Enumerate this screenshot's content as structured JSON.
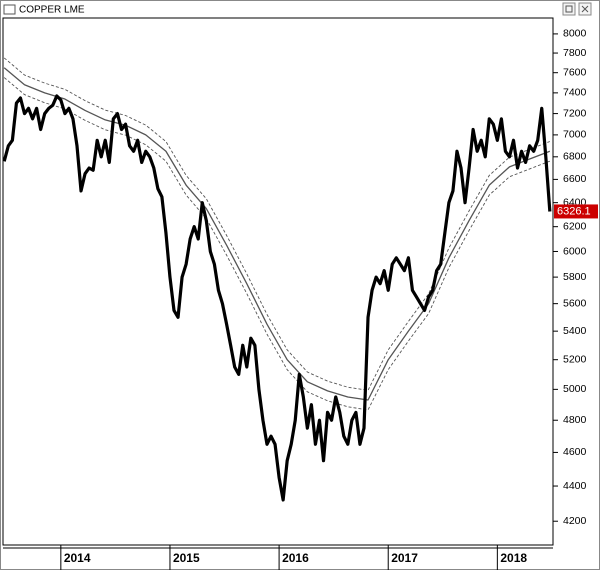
{
  "chart_data": {
    "type": "line",
    "title": "COPPER LME",
    "log_scale": true,
    "xlim": [
      2013.47,
      2018.51
    ],
    "xticks": [
      {
        "value": 2014,
        "label": "2014"
      },
      {
        "value": 2015,
        "label": "2015"
      },
      {
        "value": 2016,
        "label": "2016"
      },
      {
        "value": 2017,
        "label": "2017"
      },
      {
        "value": 2018,
        "label": "2018"
      }
    ],
    "ylim": [
      4070,
      8170
    ],
    "yticks": [
      4200,
      4400,
      4600,
      4800,
      5000,
      5200,
      5400,
      5600,
      5800,
      6000,
      6200,
      6400,
      6600,
      6800,
      7000,
      7200,
      7400,
      7600,
      7800,
      8000
    ],
    "last_value_color": "#cc0000",
    "series": [
      {
        "color": "#000000",
        "style": "bold",
        "x": [
          2013.481,
          2013.519,
          2013.556,
          2013.593,
          2013.63,
          2013.667,
          2013.704,
          2013.741,
          2013.778,
          2013.815,
          2013.852,
          2013.889,
          2013.926,
          2013.963,
          2014.0,
          2014.037,
          2014.074,
          2014.111,
          2014.148,
          2014.185,
          2014.222,
          2014.259,
          2014.296,
          2014.333,
          2014.37,
          2014.407,
          2014.444,
          2014.481,
          2014.519,
          2014.556,
          2014.593,
          2014.63,
          2014.667,
          2014.704,
          2014.741,
          2014.778,
          2014.815,
          2014.852,
          2014.889,
          2014.926,
          2014.963,
          2015.0,
          2015.037,
          2015.074,
          2015.111,
          2015.148,
          2015.185,
          2015.222,
          2015.259,
          2015.296,
          2015.333,
          2015.37,
          2015.407,
          2015.444,
          2015.481,
          2015.519,
          2015.556,
          2015.593,
          2015.63,
          2015.667,
          2015.704,
          2015.741,
          2015.778,
          2015.815,
          2015.852,
          2015.889,
          2015.926,
          2015.963,
          2016.0,
          2016.037,
          2016.074,
          2016.111,
          2016.148,
          2016.185,
          2016.222,
          2016.259,
          2016.296,
          2016.333,
          2016.37,
          2016.407,
          2016.444,
          2016.481,
          2016.519,
          2016.556,
          2016.593,
          2016.63,
          2016.667,
          2016.704,
          2016.741,
          2016.778,
          2016.815,
          2016.852,
          2016.889,
          2016.926,
          2016.963,
          2017.0,
          2017.037,
          2017.074,
          2017.111,
          2017.148,
          2017.185,
          2017.222,
          2017.259,
          2017.296,
          2017.333,
          2017.37,
          2017.407,
          2017.444,
          2017.481,
          2017.519,
          2017.556,
          2017.593,
          2017.63,
          2017.667,
          2017.704,
          2017.741,
          2017.778,
          2017.815,
          2017.852,
          2017.889,
          2017.926,
          2017.963,
          2018.0,
          2018.037,
          2018.074,
          2018.111,
          2018.148,
          2018.185,
          2018.222,
          2018.259,
          2018.296,
          2018.333,
          2018.37,
          2018.407,
          2018.444,
          2018.481
        ],
        "values": [
          6760,
          6900,
          6950,
          7300,
          7350,
          7200,
          7250,
          7150,
          7250,
          7050,
          7200,
          7250,
          7280,
          7370,
          7330,
          7200,
          7250,
          7150,
          6900,
          6500,
          6650,
          6700,
          6680,
          6950,
          6800,
          6950,
          6750,
          7150,
          7200,
          7050,
          7100,
          6900,
          6850,
          6950,
          6750,
          6850,
          6800,
          6700,
          6520,
          6450,
          6150,
          5800,
          5550,
          5500,
          5800,
          5900,
          6100,
          6200,
          6100,
          6400,
          6250,
          6000,
          5900,
          5700,
          5600,
          5450,
          5300,
          5150,
          5100,
          5300,
          5150,
          5350,
          5300,
          5000,
          4800,
          4650,
          4700,
          4650,
          4450,
          4320,
          4550,
          4650,
          4800,
          5100,
          4950,
          4750,
          4900,
          4650,
          4800,
          4550,
          4850,
          4800,
          4950,
          4850,
          4700,
          4650,
          4800,
          4850,
          4650,
          4750,
          5500,
          5700,
          5800,
          5750,
          5850,
          5700,
          5900,
          5950,
          5900,
          5850,
          5950,
          5700,
          5650,
          5600,
          5550,
          5650,
          5700,
          5850,
          5900,
          6150,
          6400,
          6500,
          6850,
          6700,
          6400,
          6700,
          7050,
          6850,
          6950,
          6800,
          7150,
          7100,
          6950,
          7150,
          6850,
          6800,
          6950,
          6700,
          6850,
          6750,
          6900,
          6850,
          6950,
          7250,
          6800,
          6326.1
        ]
      },
      {
        "color": "#555555",
        "style": "solid",
        "x": [
          2013.481,
          2013.667,
          2013.852,
          2014.037,
          2014.222,
          2014.407,
          2014.593,
          2014.778,
          2014.963,
          2015.148,
          2015.333,
          2015.519,
          2015.704,
          2015.889,
          2016.074,
          2016.259,
          2016.444,
          2016.63,
          2016.815,
          2017.0,
          2017.185,
          2017.37,
          2017.556,
          2017.741,
          2017.926,
          2018.111,
          2018.296,
          2018.481
        ],
        "values": [
          7650,
          7480,
          7400,
          7340,
          7230,
          7140,
          7090,
          7000,
          6850,
          6550,
          6350,
          6050,
          5750,
          5450,
          5200,
          5050,
          4990,
          4950,
          4930,
          5200,
          5400,
          5600,
          5950,
          6250,
          6550,
          6710,
          6780,
          6850
        ]
      },
      {
        "color": "#555555",
        "style": "dashed",
        "x": [
          2013.481,
          2013.667,
          2013.852,
          2014.037,
          2014.222,
          2014.407,
          2014.593,
          2014.778,
          2014.963,
          2015.148,
          2015.333,
          2015.519,
          2015.704,
          2015.889,
          2016.074,
          2016.259,
          2016.444,
          2016.63,
          2016.815,
          2017.0,
          2017.185,
          2017.37,
          2017.556,
          2017.741,
          2017.926,
          2018.111,
          2018.296,
          2018.481
        ],
        "values": [
          7750,
          7577,
          7496,
          7435,
          7324,
          7233,
          7182,
          7091,
          6939,
          6635,
          6433,
          6129,
          5825,
          5521,
          5268,
          5116,
          5055,
          5014,
          4994,
          5268,
          5470,
          5673,
          6027,
          6331,
          6635,
          6797,
          6868,
          6939
        ]
      },
      {
        "color": "#555555",
        "style": "dashed",
        "x": [
          2013.481,
          2013.667,
          2013.852,
          2014.037,
          2014.222,
          2014.407,
          2014.593,
          2014.778,
          2014.963,
          2015.148,
          2015.333,
          2015.519,
          2015.704,
          2015.889,
          2016.074,
          2016.259,
          2016.444,
          2016.63,
          2016.815,
          2017.0,
          2017.185,
          2017.37,
          2017.556,
          2017.741,
          2017.926,
          2018.111,
          2018.296,
          2018.481
        ],
        "values": [
          7551,
          7383,
          7304,
          7245,
          7136,
          7047,
          6998,
          6909,
          6761,
          6465,
          6267,
          5971,
          5675,
          5379,
          5132,
          4984,
          4925,
          4886,
          4866,
          5132,
          5330,
          5527,
          5873,
          6169,
          6465,
          6623,
          6692,
          6761
        ]
      }
    ]
  }
}
